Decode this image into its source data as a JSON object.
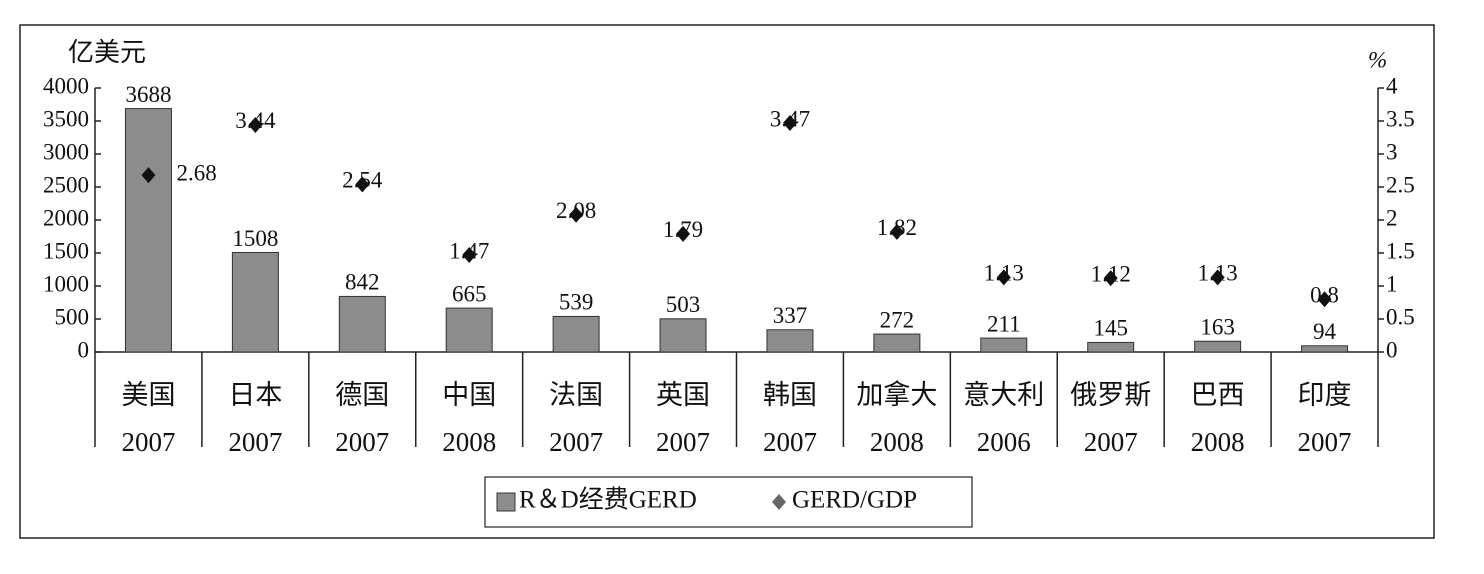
{
  "chart_data": {
    "type": "bar",
    "y_label": "亿美元",
    "y2_label": "%",
    "categories": [
      [
        "美国",
        "2007"
      ],
      [
        "日本",
        "2007"
      ],
      [
        "德国",
        "2007"
      ],
      [
        "中国",
        "2008"
      ],
      [
        "法国",
        "2007"
      ],
      [
        "英国",
        "2007"
      ],
      [
        "韩国",
        "2007"
      ],
      [
        "加拿大",
        "2008"
      ],
      [
        "意大利",
        "2006"
      ],
      [
        "俄罗斯",
        "2007"
      ],
      [
        "巴西",
        "2008"
      ],
      [
        "印度",
        "2007"
      ]
    ],
    "series": [
      {
        "name": "R＆D经费GERD",
        "type": "bar",
        "color": "#8c8c8c",
        "values": [
          3688,
          1508,
          842,
          665,
          539,
          503,
          337,
          272,
          211,
          145,
          163,
          94
        ]
      },
      {
        "name": "GERD/GDP",
        "type": "scatter",
        "axis": "y2",
        "color": "#111111",
        "values": [
          2.68,
          3.44,
          2.54,
          1.47,
          2.08,
          1.79,
          3.47,
          1.82,
          1.13,
          1.12,
          1.13,
          0.8
        ]
      }
    ],
    "ylim": [
      0,
      4000
    ],
    "yticks": [
      0,
      500,
      1000,
      1500,
      2000,
      2500,
      3000,
      3500,
      4000
    ],
    "y2lim": [
      0,
      4
    ],
    "y2ticks": [
      0,
      0.5,
      1,
      1.5,
      2,
      2.5,
      3,
      3.5,
      4
    ],
    "legend": "bottom"
  }
}
